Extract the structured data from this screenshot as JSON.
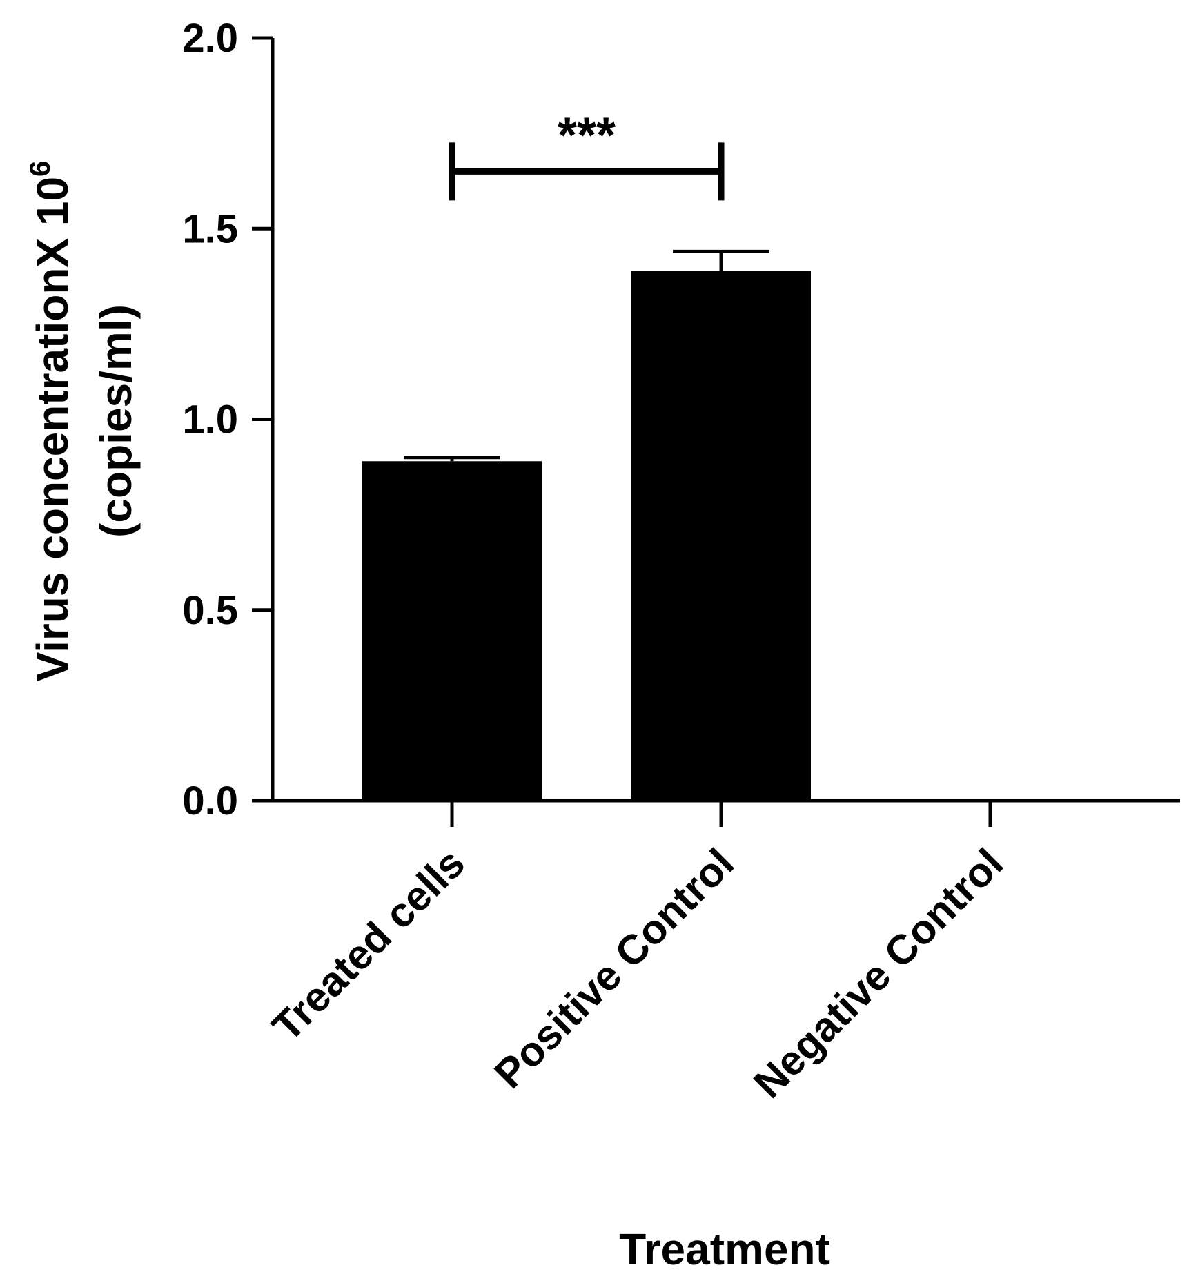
{
  "chart_data": {
    "type": "bar",
    "categories": [
      "Treated cells",
      "Positive Control",
      "Negative Control"
    ],
    "values": [
      0.89,
      1.39,
      0.0
    ],
    "errors": [
      0.01,
      0.05,
      0.0
    ],
    "xlabel": "Treatment",
    "ylabel": {
      "line1_main": "Virus concentrationX 10",
      "line1_sup": "6",
      "line2": "(copies/ml)"
    },
    "ylim": [
      0,
      2.0
    ],
    "yticks": [
      0.0,
      0.5,
      1.0,
      1.5,
      2.0
    ],
    "ytick_labels": [
      "0.0",
      "0.5",
      "1.0",
      "1.5",
      "2.0"
    ],
    "grid": false,
    "legend": "none",
    "bar_color": "#000000",
    "significance": [
      {
        "from": "Treated cells",
        "to": "Positive Control",
        "y": 1.65,
        "label": "***"
      }
    ]
  }
}
